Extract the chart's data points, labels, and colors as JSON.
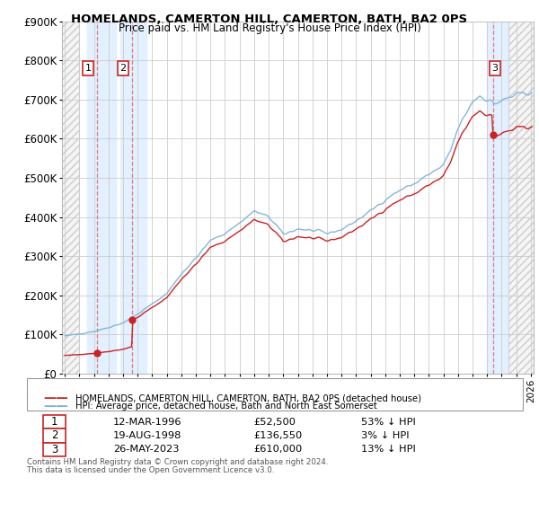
{
  "title": "HOMELANDS, CAMERTON HILL, CAMERTON, BATH, BA2 0PS",
  "subtitle": "Price paid vs. HM Land Registry's House Price Index (HPI)",
  "ylabel_values": [
    "£0",
    "£100K",
    "£200K",
    "£300K",
    "£400K",
    "£500K",
    "£600K",
    "£700K",
    "£800K",
    "£900K"
  ],
  "ylim": [
    0,
    900000
  ],
  "xlim_start": 1993.8,
  "xlim_end": 2026.2,
  "hpi_line_color": "#7aaed6",
  "price_line_color": "#cc2222",
  "sale_marker_color": "#cc2222",
  "dashed_line_color": "#e07070",
  "highlight_bg_color": "#ddeeff",
  "grid_color": "#cccccc",
  "sales": [
    {
      "date_num": 1996.19,
      "price": 52500,
      "label": "1",
      "hpi_pct": "53% ↓ HPI",
      "date_str": "12-MAR-1996",
      "price_str": "£52,500"
    },
    {
      "date_num": 1998.63,
      "price": 136550,
      "label": "2",
      "hpi_pct": "3% ↓ HPI",
      "date_str": "19-AUG-1998",
      "price_str": "£136,550"
    },
    {
      "date_num": 2023.4,
      "price": 610000,
      "label": "3",
      "hpi_pct": "13% ↓ HPI",
      "date_str": "26-MAY-2023",
      "price_str": "£610,000"
    }
  ],
  "legend_label_red": "HOMELANDS, CAMERTON HILL, CAMERTON, BATH, BA2 0PS (detached house)",
  "legend_label_blue": "HPI: Average price, detached house, Bath and North East Somerset",
  "footer_line1": "Contains HM Land Registry data © Crown copyright and database right 2024.",
  "footer_line2": "This data is licensed under the Open Government Licence v3.0."
}
